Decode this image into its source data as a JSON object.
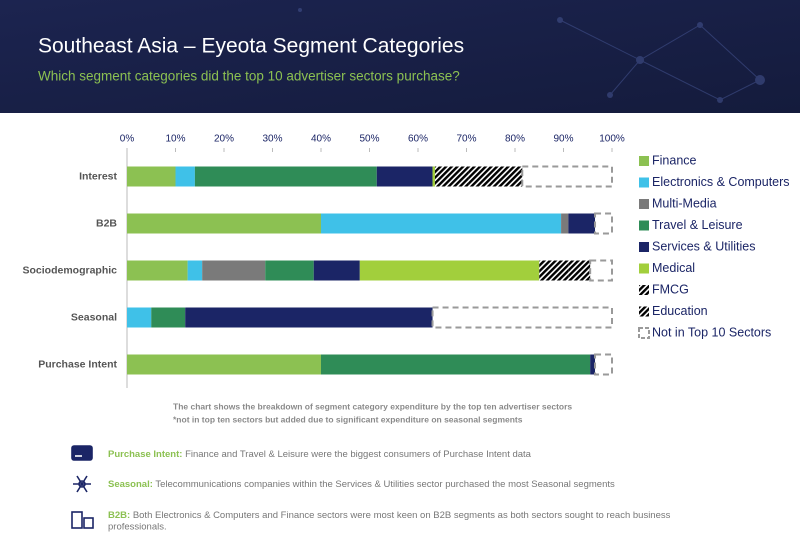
{
  "header": {
    "title": "Southeast Asia – Eyeota Segment Categories",
    "subtitle": "Which segment categories did the top 10 advertiser sectors purchase?"
  },
  "chart_data": {
    "type": "stacked-bar-horizontal",
    "categories": [
      "Interest",
      "B2B",
      "Sociodemographic",
      "Seasonal",
      "Purchase Intent"
    ],
    "xlim": [
      0,
      100
    ],
    "xticks": [
      {
        "value": 0,
        "label": "0%"
      },
      {
        "value": 10,
        "label": "10%"
      },
      {
        "value": 20,
        "label": "20%"
      },
      {
        "value": 30,
        "label": "30%"
      },
      {
        "value": 40,
        "label": "40%"
      },
      {
        "value": 50,
        "label": "50%"
      },
      {
        "value": 60,
        "label": "60%"
      },
      {
        "value": 70,
        "label": "70%"
      },
      {
        "value": 80,
        "label": "80%"
      },
      {
        "value": 90,
        "label": "90%"
      },
      {
        "value": 100,
        "label": "100%"
      }
    ],
    "grid": false,
    "series": [
      {
        "name": "Finance",
        "color": "#8cc152",
        "style": "solid",
        "values": [
          10,
          40,
          12.5,
          null,
          40
        ]
      },
      {
        "name": "Electronics & Computers",
        "color": "#3fc1e8",
        "style": "solid",
        "values": [
          4,
          49.5,
          3,
          5,
          null
        ]
      },
      {
        "name": "Multi-Media",
        "color": "#7a7a7a",
        "style": "solid",
        "values": [
          null,
          1.5,
          13,
          null,
          null
        ]
      },
      {
        "name": "Travel & Leisure",
        "color": "#2f8c57",
        "style": "solid",
        "values": [
          37.5,
          null,
          10,
          7,
          55.5
        ]
      },
      {
        "name": "Services & Utilities",
        "color": "#1b2566",
        "style": "solid",
        "values": [
          11.5,
          5.5,
          9.5,
          51,
          1
        ]
      },
      {
        "name": "Medical",
        "color": "#a2cf3c",
        "style": "solid",
        "values": [
          0.5,
          null,
          37,
          null,
          null
        ]
      },
      {
        "name": "FMCG",
        "color": "#1a93bf",
        "style": "hatched",
        "values": [
          7,
          null,
          6,
          null,
          null
        ]
      },
      {
        "name": "Education",
        "color": "#3c9a4c",
        "style": "hatched",
        "values": [
          11,
          null,
          4.5,
          null,
          null
        ]
      },
      {
        "name": "Not in Top 10 Sectors",
        "color": "#9a9a9a",
        "style": "dashed",
        "values": [
          18.5,
          3.5,
          4.5,
          37,
          3.5
        ]
      }
    ],
    "notes": [
      "The chart shows the breakdown of segment category expenditure by the top ten advertiser sectors",
      "*not in top ten sectors but added due to significant expenditure on seasonal segments"
    ]
  },
  "insights": [
    {
      "label": "Purchase Intent:",
      "text": "Finance and Travel & Leisure were the biggest consumers of Purchase Intent data"
    },
    {
      "label": "Seasonal:",
      "text": "Telecommunications companies within the Services & Utilities sector purchased the most Seasonal segments"
    },
    {
      "label": "B2B:",
      "text": "Both Electronics & Computers and Finance sectors were most keen on B2B segments as both sectors sought to reach business",
      "text2": "professionals."
    }
  ]
}
